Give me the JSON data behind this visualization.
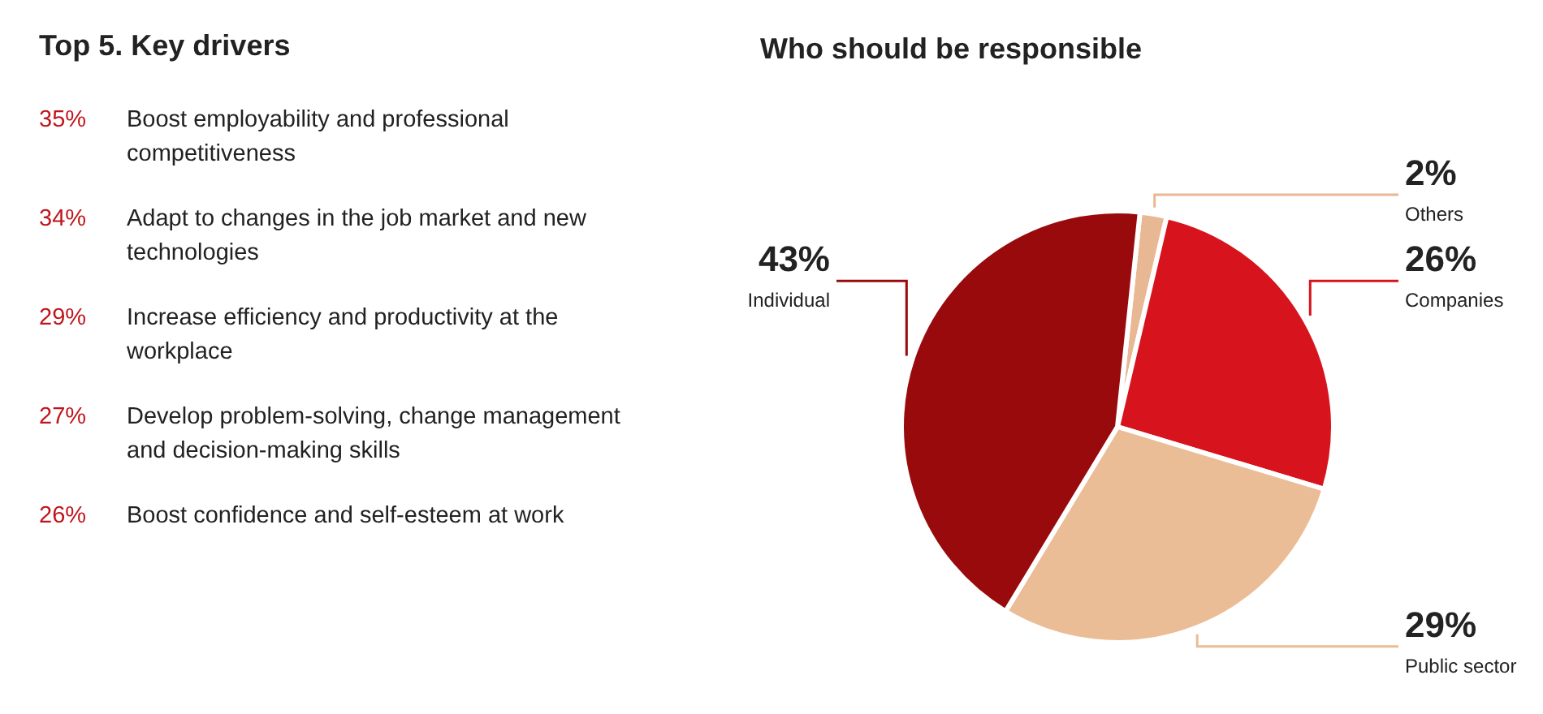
{
  "chart_data": [
    {
      "type": "other",
      "title": "Top 5. Key drivers",
      "categories": [
        "Boost employability and professional competitiveness",
        "Adapt to changes in the job market and new technologies",
        "Increase efficiency and productivity at the workplace",
        "Develop problem-solving, change management and decision-making skills",
        "Boost confidence and self-esteem at work"
      ],
      "value_labels": [
        "35%",
        "34%",
        "29%",
        "27%",
        "26%"
      ]
    },
    {
      "type": "pie",
      "title": "Who should be responsible",
      "categories": [
        "Others",
        "Companies",
        "Public sector",
        "Individual"
      ],
      "values": [
        2,
        26,
        29,
        43
      ],
      "value_labels": [
        "2%",
        "26%",
        "29%",
        "43%"
      ],
      "colors": [
        "#e8b894",
        "#d7141d",
        "#ebbd96",
        "#990a0d"
      ]
    }
  ]
}
